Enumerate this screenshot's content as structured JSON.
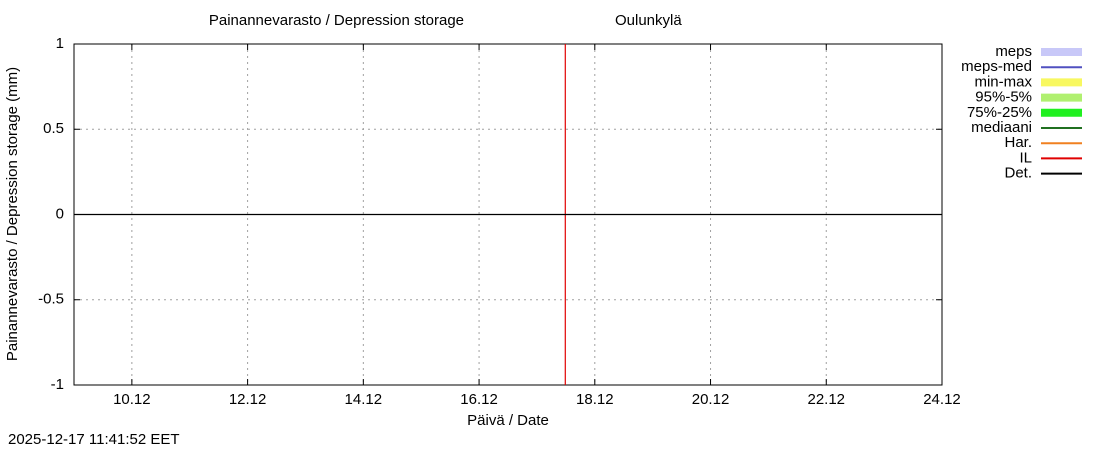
{
  "chart_data": {
    "type": "line",
    "title": "Painannevarasto / Depression storage",
    "location": "Oulunkylä",
    "x_label": "Päivä / Date",
    "y_label": "Painannevarasto / Depression storage (mm)",
    "timestamp": "2025-12-17 11:41:52 EET",
    "xlim": [
      9,
      24
    ],
    "xticks": [
      {
        "value": 10,
        "label": "10.12"
      },
      {
        "value": 12,
        "label": "12.12"
      },
      {
        "value": 14,
        "label": "14.12"
      },
      {
        "value": 16,
        "label": "16.12"
      },
      {
        "value": 18,
        "label": "18.12"
      },
      {
        "value": 20,
        "label": "20.12"
      },
      {
        "value": 22,
        "label": "22.12"
      },
      {
        "value": 24,
        "label": "24.12"
      }
    ],
    "ylim": [
      -1,
      1
    ],
    "yticks": [
      -1,
      -0.5,
      0,
      0.5,
      1
    ],
    "grid": true,
    "legend": "outside-right",
    "series": [
      {
        "name": "meps",
        "color": "#c8c8f8",
        "kind": "band",
        "x": [],
        "values": []
      },
      {
        "name": "meps-med",
        "color": "#5050c0",
        "kind": "line",
        "x": [],
        "values": []
      },
      {
        "name": "min-max",
        "color": "#f8f860",
        "kind": "band",
        "x": [],
        "values": []
      },
      {
        "name": "95%-5%",
        "color": "#b0f070",
        "kind": "band",
        "x": [],
        "values": []
      },
      {
        "name": "75%-25%",
        "color": "#20f020",
        "kind": "band",
        "x": [],
        "values": []
      },
      {
        "name": "mediaani",
        "color": "#207020",
        "kind": "line",
        "x": [],
        "values": []
      },
      {
        "name": "Har.",
        "color": "#f08020",
        "kind": "line",
        "x": [],
        "values": []
      },
      {
        "name": "IL",
        "color": "#e00000",
        "kind": "line",
        "x": [
          17.49,
          17.49
        ],
        "values": [
          -1,
          1
        ]
      },
      {
        "name": "Det.",
        "color": "#000000",
        "kind": "line",
        "x": [
          9,
          24
        ],
        "values": [
          0,
          0
        ]
      }
    ]
  }
}
